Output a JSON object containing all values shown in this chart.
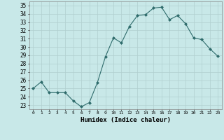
{
  "hours": [
    0,
    1,
    2,
    3,
    4,
    5,
    6,
    7,
    8,
    9,
    10,
    11,
    12,
    13,
    14,
    15,
    16,
    17,
    18,
    19,
    20,
    21,
    22,
    23
  ],
  "values": [
    25.0,
    25.8,
    24.5,
    24.5,
    24.5,
    23.5,
    22.8,
    23.3,
    25.7,
    28.8,
    31.1,
    30.5,
    32.5,
    33.8,
    33.9,
    34.7,
    34.8,
    33.3,
    33.8,
    32.8,
    31.1,
    30.9,
    29.8,
    28.9
  ],
  "line_color": "#2e6b6b",
  "marker": "D",
  "marker_size": 2.0,
  "bg_color": "#c8e8e8",
  "grid_color": "#b0cfcf",
  "xlabel": "Humidex (Indice chaleur)",
  "ylim": [
    22.5,
    35.5
  ],
  "yticks": [
    23,
    24,
    25,
    26,
    27,
    28,
    29,
    30,
    31,
    32,
    33,
    34,
    35
  ]
}
